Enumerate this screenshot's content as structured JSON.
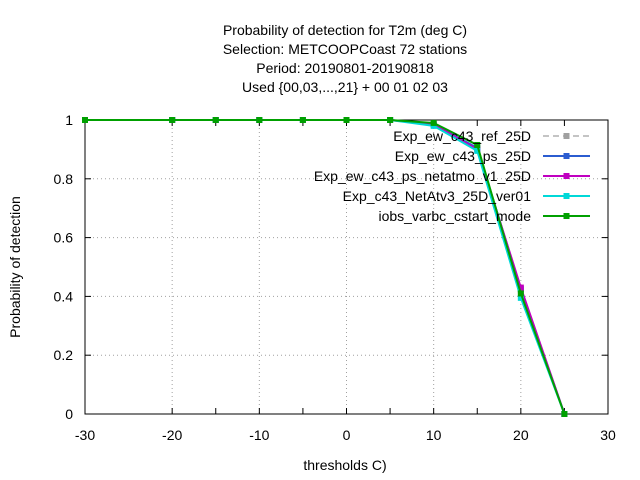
{
  "chart_data": {
    "type": "line",
    "title_lines": [
      "Probability of detection  for T2m (deg C)",
      "Selection: METCOOPCoast     72 stations",
      "Period: 20190801-20190818",
      "Used {00,03,...,21} + 00 01 02 03"
    ],
    "xlabel": "thresholds C)",
    "ylabel": "Probability of detection",
    "xlim": [
      -30,
      30
    ],
    "ylim": [
      0,
      1
    ],
    "xticks": [
      -30,
      -20,
      -10,
      0,
      10,
      20,
      30
    ],
    "yticks": [
      0,
      0.2,
      0.4,
      0.6,
      0.8,
      1
    ],
    "ytick_labels": [
      "0",
      "0.2",
      "0.4",
      "0.6",
      "0.8",
      "1"
    ],
    "grid": true,
    "legend_position": "top-right",
    "x": [
      -30,
      -20,
      -15,
      -10,
      -5,
      0,
      5,
      10,
      15,
      20,
      25
    ],
    "series": [
      {
        "name": "Exp_ew_c43_ref_25D",
        "color": "#a0a0a0",
        "dashed": true,
        "values": [
          1,
          1,
          1,
          1,
          1,
          1,
          1,
          0.985,
          0.9,
          0.42,
          0
        ]
      },
      {
        "name": "Exp_ew_c43_ps_25D",
        "color": "#2b5cd0",
        "dashed": false,
        "values": [
          1,
          1,
          1,
          1,
          1,
          1,
          1,
          0.985,
          0.905,
          0.425,
          0
        ]
      },
      {
        "name": "Exp_ew_c43_ps_netatmo_v1_25D",
        "color": "#c000c0",
        "dashed": false,
        "values": [
          1,
          1,
          1,
          1,
          1,
          1,
          1,
          0.985,
          0.9,
          0.43,
          0
        ]
      },
      {
        "name": "Exp_c43_NetAtv3_25D_ver01",
        "color": "#00d8d8",
        "dashed": false,
        "values": [
          1,
          1,
          1,
          1,
          1,
          1,
          1,
          0.98,
          0.895,
          0.395,
          0
        ]
      },
      {
        "name": "iobs_varbc_cstart_mode",
        "color": "#00a000",
        "dashed": false,
        "values": [
          1,
          1,
          1,
          1,
          1,
          1,
          1,
          0.99,
          0.915,
          0.41,
          0
        ]
      }
    ]
  }
}
